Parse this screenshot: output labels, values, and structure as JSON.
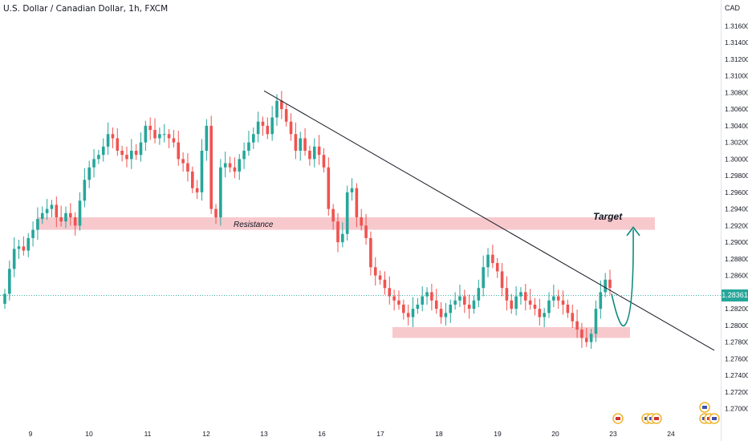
{
  "header": {
    "title": "U.S. Dollar / Canadian Dollar, 1h, FXCM",
    "unit": "CAD"
  },
  "current_price": {
    "label": "1.28361",
    "value": 1.28361,
    "color": "#26a69a"
  },
  "colors": {
    "up": "#26a69a",
    "down": "#ef5350",
    "zone": "#f7c9cd",
    "trendline": "#131722",
    "arrow": "#0e8a7d",
    "grid_text": "#131722"
  },
  "annotations": {
    "resistance_label": "Resistance",
    "target_label": "Target"
  },
  "chart_data": {
    "type": "candlestick",
    "title": "U.S. Dollar / Canadian Dollar, 1h, FXCM",
    "ylabel": "CAD",
    "ylim": [
      1.269,
      1.317
    ],
    "y_ticks": [
      "1.31600",
      "1.31400",
      "1.31200",
      "1.31000",
      "1.30800",
      "1.30600",
      "1.30400",
      "1.30200",
      "1.30000",
      "1.29800",
      "1.29600",
      "1.29400",
      "1.29200",
      "1.29000",
      "1.28800",
      "1.28600",
      "1.28400",
      "1.28200",
      "1.28000",
      "1.27800",
      "1.27600",
      "1.27400",
      "1.27200",
      "1.27000"
    ],
    "x_ticks": [
      "9",
      "10",
      "11",
      "12",
      "13",
      "16",
      "17",
      "18",
      "19",
      "20",
      "23",
      "24"
    ],
    "x_tick_day_index": [
      0,
      1,
      2,
      3,
      4,
      5,
      6,
      7,
      8,
      9,
      10,
      11
    ],
    "series_closes": [
      1.2838,
      1.2868,
      1.2892,
      1.2895,
      1.289,
      1.2905,
      1.2915,
      1.2928,
      1.2935,
      1.294,
      1.2945,
      1.293,
      1.2925,
      1.2935,
      1.293,
      1.292,
      1.295,
      1.2975,
      1.299,
      1.3,
      1.3005,
      1.3015,
      1.303,
      1.3025,
      1.301,
      1.3005,
      1.3,
      1.301,
      1.3005,
      1.302,
      1.304,
      1.3035,
      1.3025,
      1.303,
      1.303,
      1.3025,
      1.302,
      1.3,
      1.2995,
      1.2985,
      1.2965,
      1.296,
      1.301,
      1.304,
      1.294,
      1.293,
      1.299,
      1.2995,
      1.299,
      1.2985,
      1.3,
      1.301,
      1.302,
      1.303,
      1.3045,
      1.304,
      1.303,
      1.305,
      1.307,
      1.306,
      1.3045,
      1.303,
      1.301,
      1.3025,
      1.301,
      1.3,
      1.3015,
      1.3005,
      1.299,
      1.294,
      1.2925,
      1.29,
      1.291,
      1.296,
      1.2965,
      1.293,
      1.292,
      1.2905,
      1.287,
      1.286,
      1.2855,
      1.2845,
      1.2835,
      1.283,
      1.2825,
      1.2815,
      1.281,
      1.282,
      1.2825,
      1.2835,
      1.284,
      1.283,
      1.282,
      1.281,
      1.2815,
      1.2825,
      1.283,
      1.2835,
      1.2825,
      1.282,
      1.283,
      1.2845,
      1.287,
      1.2885,
      1.2875,
      1.2865,
      1.2845,
      1.283,
      1.282,
      1.2835,
      1.284,
      1.283,
      1.2825,
      1.282,
      1.281,
      1.2815,
      1.283,
      1.2835,
      1.283,
      1.2825,
      1.2815,
      1.2805,
      1.2795,
      1.2785,
      1.278,
      1.279,
      1.282,
      1.284,
      1.2855,
      1.2845
    ],
    "resistance_zone": {
      "label": "Resistance",
      "low": 1.2915,
      "high": 1.293
    },
    "support_zone": {
      "low": 1.2785,
      "high": 1.2798
    },
    "target_label": "Target",
    "trendline": {
      "start": {
        "day_index": 4.0,
        "price": 1.3082
      },
      "end": {
        "day_index": 11.75,
        "price": 1.277
      }
    },
    "legend": "none",
    "grid": false
  }
}
